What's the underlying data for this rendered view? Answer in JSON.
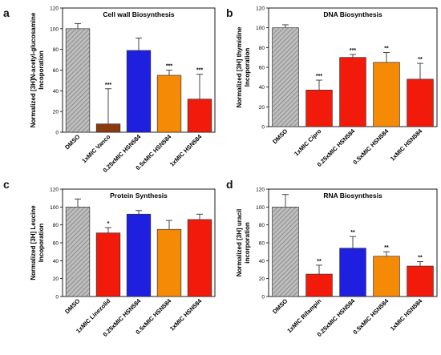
{
  "colors": {
    "gray": "#b0b0b0",
    "brown": "#8b3a0f",
    "blue": "#1f1fe0",
    "orange": "#f58a07",
    "red": "#f21a0a"
  },
  "chart_data": [
    {
      "panel_label": "a",
      "type": "bar",
      "title": "Cell wall Biosynthesis",
      "ylabel": "Normalized [3H]N-acetyl-glucosamine Incoporation",
      "categories": [
        "DMSO",
        "1xMIC Vanco",
        "0.25xMIC HSN584",
        "0.5xMIC HSN584",
        "1xMIC HSN584"
      ],
      "values": [
        100,
        8,
        79,
        55,
        32
      ],
      "errors": [
        5,
        34,
        12,
        5,
        24
      ],
      "significance": [
        "",
        "***",
        "",
        "***",
        "***"
      ],
      "bar_colors": [
        "gray",
        "brown",
        "blue",
        "orange",
        "red"
      ],
      "ylim": [
        0,
        120
      ],
      "yticks": [
        0,
        20,
        40,
        60,
        80,
        100,
        120
      ]
    },
    {
      "panel_label": "b",
      "type": "bar",
      "title": "DNA Biosynthesis",
      "ylabel": "Normalized [3H] thymidine Incoporation",
      "categories": [
        "DMSO",
        "1xMIC Cipro",
        "0.25xMIC HSN584",
        "0.5xMIC HSN584",
        "1xMIC HSN584"
      ],
      "values": [
        100,
        37,
        70,
        65,
        48
      ],
      "errors": [
        3,
        10,
        3,
        10,
        16
      ],
      "significance": [
        "",
        "***",
        "***",
        "**",
        "**"
      ],
      "bar_colors": [
        "gray",
        "red",
        "red",
        "orange",
        "red"
      ],
      "ylim": [
        0,
        120
      ],
      "yticks": [
        0,
        20,
        40,
        60,
        80,
        100,
        120
      ]
    },
    {
      "panel_label": "c",
      "type": "bar",
      "title": "Protein Synthesis",
      "ylabel": "Normalized [3H] Leucine Incoporation",
      "categories": [
        "DMSO",
        "1xMIC Linezolid",
        "0.25xMIC HSN584",
        "0.5xMIC HSN584",
        "1xMIC HSN584"
      ],
      "values": [
        100,
        71,
        92,
        75,
        86
      ],
      "errors": [
        9,
        6,
        4,
        10,
        6
      ],
      "significance": [
        "",
        "*",
        "",
        "",
        ""
      ],
      "bar_colors": [
        "gray",
        "red",
        "blue",
        "orange",
        "red"
      ],
      "ylim": [
        0,
        120
      ],
      "yticks": [
        0,
        20,
        40,
        60,
        80,
        100,
        120
      ]
    },
    {
      "panel_label": "d",
      "type": "bar",
      "title": "RNA Biosynthesis",
      "ylabel": "Normalized [3H] uracil incorporation",
      "categories": [
        "DMSO",
        "1xMIC Rifampin",
        "0.25xMIC HSN584",
        "0.5xMIC HSN584",
        "1xMIC HSN584"
      ],
      "values": [
        100,
        25,
        54,
        45,
        34
      ],
      "errors": [
        14,
        10,
        13,
        5,
        5
      ],
      "significance": [
        "",
        "**",
        "**",
        "**",
        "**"
      ],
      "bar_colors": [
        "gray",
        "red",
        "blue",
        "orange",
        "red"
      ],
      "ylim": [
        0,
        120
      ],
      "yticks": [
        0,
        20,
        40,
        60,
        80,
        100,
        120
      ]
    }
  ]
}
